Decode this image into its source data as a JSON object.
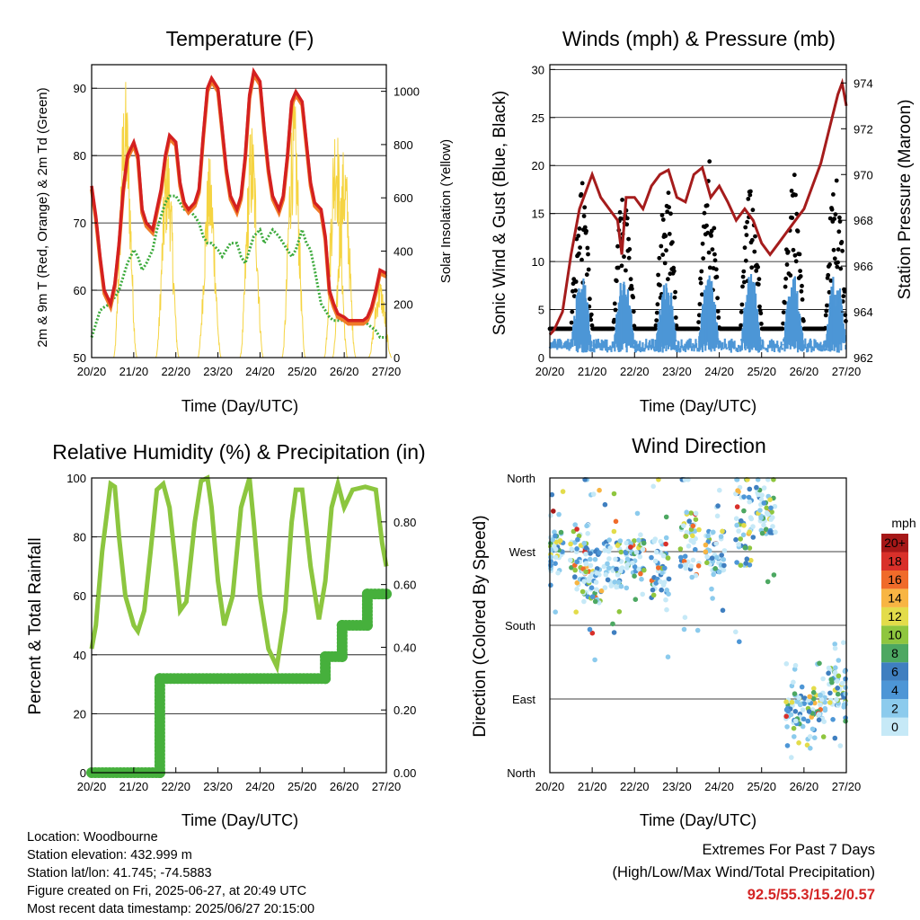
{
  "x_ticks": [
    "20/20",
    "21/20",
    "22/20",
    "23/20",
    "24/20",
    "25/20",
    "26/20",
    "27/20"
  ],
  "xlabel": "Time (Day/UTC)",
  "colors": {
    "temp_2m": "#d42020",
    "temp_9m": "#f07a28",
    "dewpoint": "#3caa3c",
    "solar": "#f5d442",
    "wind": "#4d96d6",
    "gust": "#000000",
    "pressure": "#a51c1c",
    "rh": "#8cc63f",
    "precip": "#46b03c",
    "extremes": "#d42626"
  },
  "chart_data": [
    {
      "id": "temperature",
      "type": "line",
      "title": "Temperature (F)",
      "xlabel": "Time (Day/UTC)",
      "ylabel": "2m & 9m T (Red, Orange) & 2m Td (Green)",
      "ylabel_right": "Solar Insolation (Yellow)",
      "ylim": [
        50,
        93.5
      ],
      "ylim_right": [
        0,
        1100
      ],
      "yticks": [
        50,
        60,
        70,
        80,
        90
      ],
      "yticks_right": [
        0,
        200,
        400,
        600,
        800,
        1000
      ],
      "grid": true,
      "x_days": [
        0,
        0.1,
        0.2,
        0.3,
        0.45,
        0.55,
        0.65,
        0.75,
        0.85,
        1.0,
        1.1,
        1.2,
        1.3,
        1.45,
        1.55,
        1.65,
        1.75,
        1.85,
        2.0,
        2.1,
        2.2,
        2.3,
        2.45,
        2.55,
        2.65,
        2.75,
        2.85,
        3.0,
        3.1,
        3.2,
        3.3,
        3.45,
        3.55,
        3.65,
        3.75,
        3.85,
        4.0,
        4.1,
        4.2,
        4.3,
        4.45,
        4.55,
        4.65,
        4.75,
        4.85,
        5.0,
        5.1,
        5.2,
        5.3,
        5.45,
        5.55,
        5.65,
        5.75,
        5.85,
        6.0,
        6.1,
        6.2,
        6.3,
        6.45,
        6.55,
        6.65,
        6.75,
        6.85,
        7.0
      ],
      "series": [
        {
          "name": "2m T",
          "values": [
            75.5,
            71,
            65,
            60,
            58,
            61,
            67,
            75,
            80,
            82,
            80,
            72,
            70,
            69,
            72,
            75,
            80,
            83,
            82,
            76,
            73,
            72,
            73,
            75,
            83,
            90,
            91.5,
            90,
            84,
            78,
            74,
            72,
            74,
            80,
            89,
            92.5,
            91,
            84,
            78,
            74,
            72,
            74,
            80,
            88,
            89.5,
            88,
            82,
            76,
            73,
            72,
            68,
            60,
            58,
            56.5,
            56,
            55.5,
            55.5,
            55.5,
            55.5,
            56,
            57.5,
            60,
            63,
            62.5
          ]
        },
        {
          "name": "9m T",
          "values": [
            75,
            70.5,
            64.5,
            59.5,
            57.5,
            60.5,
            66.5,
            74.5,
            79.5,
            81.5,
            79.5,
            71.5,
            69.5,
            68.5,
            71.5,
            74.5,
            79.5,
            82.5,
            81.5,
            75.5,
            72.5,
            71.5,
            72.5,
            74.5,
            82.5,
            89.5,
            91,
            89.5,
            83.5,
            77.5,
            73.5,
            71.5,
            73.5,
            79.5,
            88.5,
            92,
            90.5,
            83.5,
            77.5,
            73.5,
            71.5,
            73.5,
            79.5,
            87.5,
            89,
            87.5,
            81.5,
            75.5,
            72.5,
            71.5,
            67.5,
            59.5,
            57.5,
            56,
            55.5,
            55,
            55,
            55,
            55,
            55.5,
            57,
            59.5,
            62.5,
            62
          ]
        },
        {
          "name": "2m Td",
          "values": [
            53,
            55,
            57,
            57.5,
            58,
            59,
            60,
            62,
            64,
            66,
            65,
            63,
            64,
            66,
            69,
            71,
            73,
            74,
            74,
            73,
            72,
            72,
            71,
            70,
            68,
            67,
            67,
            66,
            65,
            66,
            67,
            67,
            65,
            64,
            66,
            68,
            69,
            67,
            68,
            69,
            68,
            67,
            66,
            65,
            66,
            69,
            67,
            66,
            63,
            58,
            57,
            56,
            55.5,
            55.5,
            55.5,
            55,
            55,
            55,
            55.5,
            55,
            54.5,
            54,
            53,
            53
          ]
        }
      ],
      "solar_series": {
        "name": "Solar Insolation",
        "peaks": [
          1050,
          820,
          760,
          900,
          1000,
          930,
          800,
          300
        ],
        "peak_days": [
          0.8,
          1.8,
          2.8,
          3.8,
          4.8,
          5.8,
          6.0,
          6.85
        ]
      }
    },
    {
      "id": "winds",
      "type": "scatter",
      "title": "Winds (mph) & Pressure (mb)",
      "xlabel": "Time (Day/UTC)",
      "ylabel": "Sonic Wind & Gust (Blue, Black)",
      "ylabel_right": "Station Pressure (Maroon)",
      "ylim": [
        0,
        30.5
      ],
      "ylim_right": [
        962,
        974.8
      ],
      "yticks": [
        0,
        5,
        10,
        15,
        20,
        25,
        30
      ],
      "yticks_right": [
        962,
        964,
        966,
        968,
        970,
        972,
        974
      ],
      "grid": true,
      "pressure_x_days": [
        0,
        0.1,
        0.3,
        0.5,
        0.7,
        0.9,
        1.0,
        1.1,
        1.2,
        1.4,
        1.6,
        1.7,
        1.8,
        2.0,
        2.2,
        2.4,
        2.6,
        2.8,
        3.0,
        3.2,
        3.4,
        3.6,
        3.8,
        4.0,
        4.2,
        4.4,
        4.6,
        4.8,
        5.0,
        5.2,
        5.4,
        5.6,
        5.8,
        6.0,
        6.2,
        6.4,
        6.6,
        6.8,
        6.9,
        7.0
      ],
      "pressure_values": [
        963,
        963.2,
        964,
        966.5,
        968.5,
        969.5,
        970,
        969.5,
        969,
        968.5,
        968,
        966.5,
        969,
        969,
        968.5,
        969.5,
        970,
        970.2,
        969,
        968.8,
        970,
        970.3,
        969,
        969.5,
        968.8,
        968,
        968.5,
        968,
        967,
        966.5,
        967,
        967.5,
        968,
        968.5,
        969.5,
        970.5,
        972,
        973.5,
        974,
        973
      ]
    },
    {
      "id": "humidity",
      "type": "line",
      "title": "Relative Humidity (%) & Precipitation (in)",
      "xlabel": "Time (Day/UTC)",
      "ylabel": "Percent & Total Rainfall",
      "ylim": [
        0,
        100
      ],
      "ylim_right": [
        0,
        0.94
      ],
      "yticks": [
        0,
        20,
        40,
        60,
        80,
        100
      ],
      "yticks_right": [
        "0.00",
        "0.20",
        "0.40",
        "0.60",
        "0.80"
      ],
      "grid": true,
      "rh_x_days": [
        0,
        0.1,
        0.25,
        0.45,
        0.55,
        0.65,
        0.8,
        1.0,
        1.1,
        1.25,
        1.4,
        1.55,
        1.7,
        1.85,
        2.0,
        2.1,
        2.25,
        2.45,
        2.6,
        2.75,
        2.85,
        3.0,
        3.15,
        3.35,
        3.55,
        3.75,
        3.85,
        4.0,
        4.2,
        4.4,
        4.6,
        4.75,
        4.85,
        5.0,
        5.2,
        5.4,
        5.55,
        5.7,
        5.85,
        6.0,
        6.2,
        6.5,
        6.75,
        6.9,
        7.0
      ],
      "rh_values": [
        42,
        50,
        75,
        98,
        97,
        80,
        60,
        50,
        48,
        55,
        75,
        96,
        98,
        90,
        70,
        55,
        58,
        85,
        99,
        100,
        90,
        65,
        50,
        60,
        90,
        100,
        85,
        60,
        42,
        36,
        55,
        85,
        96,
        96,
        70,
        52,
        65,
        90,
        98,
        90,
        96,
        97,
        96,
        78,
        70
      ],
      "precip_steps": [
        [
          0,
          0.0
        ],
        [
          1.62,
          0.0
        ],
        [
          1.62,
          0.3
        ],
        [
          5.55,
          0.3
        ],
        [
          5.55,
          0.37
        ],
        [
          5.95,
          0.37
        ],
        [
          5.95,
          0.47
        ],
        [
          6.55,
          0.47
        ],
        [
          6.55,
          0.57
        ],
        [
          7.0,
          0.57
        ]
      ]
    },
    {
      "id": "wind_direction",
      "type": "scatter",
      "title": "Wind Direction",
      "xlabel": "Time (Day/UTC)",
      "ylabel": "Direction (Colored By Speed)",
      "ylim": [
        0,
        360
      ],
      "yticks": [
        "North",
        "East",
        "South",
        "West",
        "North"
      ],
      "grid": true,
      "colorbar_title": "mph",
      "colorbar_labels": [
        "0",
        "2",
        "4",
        "6",
        "8",
        "10",
        "12",
        "14",
        "16",
        "18",
        "20+"
      ],
      "colorbar_colors": [
        "#c6e9f7",
        "#8ccbed",
        "#4d96d6",
        "#3f7fc0",
        "#4da862",
        "#8fc63f",
        "#e3dc4a",
        "#f8b543",
        "#f06b2a",
        "#d9302a",
        "#a61818"
      ],
      "clusters": [
        {
          "day": 0.1,
          "dir": 270,
          "spread": 25
        },
        {
          "day": 0.7,
          "dir": 260,
          "spread": 45
        },
        {
          "day": 1.0,
          "dir": 240,
          "spread": 35
        },
        {
          "day": 1.5,
          "dir": 255,
          "spread": 30
        },
        {
          "day": 2.0,
          "dir": 265,
          "spread": 20
        },
        {
          "day": 2.6,
          "dir": 250,
          "spread": 40
        },
        {
          "day": 3.3,
          "dir": 280,
          "spread": 40
        },
        {
          "day": 3.9,
          "dir": 270,
          "spread": 25
        },
        {
          "day": 4.6,
          "dir": 300,
          "spread": 50
        },
        {
          "day": 5.1,
          "dir": 320,
          "spread": 30
        },
        {
          "day": 5.8,
          "dir": 75,
          "spread": 20
        },
        {
          "day": 6.3,
          "dir": 80,
          "spread": 18
        },
        {
          "day": 6.8,
          "dir": 105,
          "spread": 25
        }
      ]
    }
  ],
  "station": {
    "location": "Location: Woodbourne",
    "elevation": "Station elevation: 432.999 m",
    "latlon": "Station lat/lon: 41.745; -74.5883",
    "created": "Figure created on Fri, 2025-06-27, at 20:49 UTC",
    "recent": "Most recent data timestamp: 2025/06/27 20:15:00"
  },
  "extremes": {
    "heading": "Extremes For Past 7 Days",
    "subheading": "(High/Low/Max Wind/Total Precipitation)",
    "values": "92.5/55.3/15.2/0.57"
  }
}
